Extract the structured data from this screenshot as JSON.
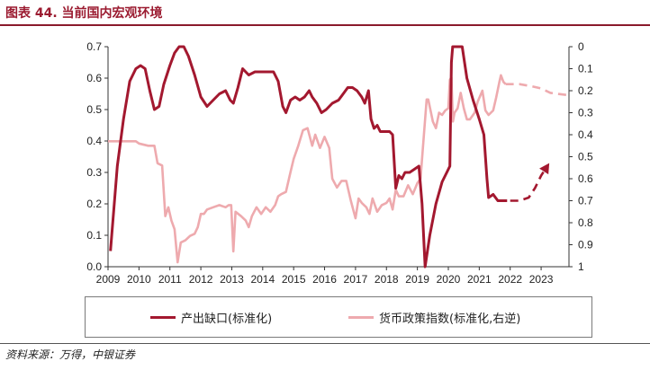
{
  "title": "图表 44. 当前国内宏观环境",
  "source": "资料来源：万得，中银证券",
  "legend": {
    "output_gap": "产出缺口(标准化)",
    "monetary_policy": "货币政策指数(标准化,右逆)"
  },
  "colors": {
    "output_gap": "#a3182f",
    "monetary_policy": "#eeaaae",
    "title": "#9b1b30"
  },
  "chart_data": {
    "type": "line",
    "xlim": [
      2009,
      2023.9
    ],
    "x_ticks": [
      "2009",
      "2010",
      "2011",
      "2012",
      "2013",
      "2014",
      "2015",
      "2016",
      "2017",
      "2018",
      "2019",
      "2020",
      "2021",
      "2022",
      "2023"
    ],
    "y_left": {
      "lim": [
        0,
        0.7
      ],
      "ticks": [
        "0.0",
        "0.1",
        "0.2",
        "0.3",
        "0.4",
        "0.5",
        "0.6",
        "0.7"
      ]
    },
    "y_right": {
      "lim": [
        0,
        1
      ],
      "inverted": true,
      "ticks": [
        "0",
        "0.1",
        "0.2",
        "0.3",
        "0.4",
        "0.5",
        "0.6",
        "0.7",
        "0.8",
        "0.9",
        "1"
      ]
    },
    "series": [
      {
        "name": "产出缺口(标准化)",
        "axis": "left",
        "values": [
          [
            2009.08,
            0.05
          ],
          [
            2009.3,
            0.32
          ],
          [
            2009.5,
            0.47
          ],
          [
            2009.7,
            0.59
          ],
          [
            2009.9,
            0.63
          ],
          [
            2010.05,
            0.64
          ],
          [
            2010.2,
            0.63
          ],
          [
            2010.35,
            0.56
          ],
          [
            2010.5,
            0.5
          ],
          [
            2010.65,
            0.51
          ],
          [
            2010.8,
            0.58
          ],
          [
            2011.0,
            0.64
          ],
          [
            2011.15,
            0.68
          ],
          [
            2011.3,
            0.7
          ],
          [
            2011.45,
            0.7
          ],
          [
            2011.6,
            0.67
          ],
          [
            2011.8,
            0.61
          ],
          [
            2012.0,
            0.54
          ],
          [
            2012.2,
            0.51
          ],
          [
            2012.4,
            0.53
          ],
          [
            2012.6,
            0.55
          ],
          [
            2012.8,
            0.56
          ],
          [
            2012.95,
            0.53
          ],
          [
            2013.05,
            0.52
          ],
          [
            2013.2,
            0.57
          ],
          [
            2013.35,
            0.63
          ],
          [
            2013.55,
            0.61
          ],
          [
            2013.75,
            0.62
          ],
          [
            2013.95,
            0.62
          ],
          [
            2014.15,
            0.62
          ],
          [
            2014.35,
            0.62
          ],
          [
            2014.5,
            0.59
          ],
          [
            2014.65,
            0.51
          ],
          [
            2014.75,
            0.49
          ],
          [
            2014.9,
            0.53
          ],
          [
            2015.05,
            0.54
          ],
          [
            2015.2,
            0.53
          ],
          [
            2015.35,
            0.54
          ],
          [
            2015.5,
            0.56
          ],
          [
            2015.6,
            0.54
          ],
          [
            2015.75,
            0.52
          ],
          [
            2015.9,
            0.49
          ],
          [
            2016.05,
            0.5
          ],
          [
            2016.25,
            0.52
          ],
          [
            2016.45,
            0.53
          ],
          [
            2016.6,
            0.55
          ],
          [
            2016.75,
            0.57
          ],
          [
            2016.9,
            0.57
          ],
          [
            2017.05,
            0.56
          ],
          [
            2017.2,
            0.54
          ],
          [
            2017.3,
            0.52
          ],
          [
            2017.42,
            0.56
          ],
          [
            2017.5,
            0.47
          ],
          [
            2017.6,
            0.44
          ],
          [
            2017.7,
            0.45
          ],
          [
            2017.8,
            0.43
          ],
          [
            2017.95,
            0.43
          ],
          [
            2018.1,
            0.43
          ],
          [
            2018.2,
            0.42
          ],
          [
            2018.3,
            0.25
          ],
          [
            2018.4,
            0.29
          ],
          [
            2018.5,
            0.28
          ],
          [
            2018.6,
            0.3
          ],
          [
            2018.75,
            0.3
          ],
          [
            2018.9,
            0.31
          ],
          [
            2019.05,
            0.32
          ],
          [
            2019.15,
            0.2
          ],
          [
            2019.25,
            0.0
          ],
          [
            2019.4,
            0.1
          ],
          [
            2019.6,
            0.2
          ],
          [
            2019.8,
            0.27
          ],
          [
            2019.95,
            0.3
          ],
          [
            2020.05,
            0.32
          ],
          [
            2020.1,
            0.65
          ],
          [
            2020.14,
            0.7
          ],
          [
            2020.45,
            0.7
          ],
          [
            2020.6,
            0.6
          ],
          [
            2020.8,
            0.53
          ],
          [
            2021.0,
            0.47
          ],
          [
            2021.15,
            0.42
          ],
          [
            2021.25,
            0.28
          ],
          [
            2021.3,
            0.22
          ],
          [
            2021.45,
            0.23
          ],
          [
            2021.6,
            0.21
          ],
          [
            2021.75,
            0.21
          ],
          [
            2021.9,
            0.21
          ]
        ],
        "forecast": [
          [
            2022.0,
            0.21
          ],
          [
            2022.3,
            0.21
          ],
          [
            2022.6,
            0.22
          ],
          [
            2022.8,
            0.25
          ],
          [
            2023.0,
            0.29
          ],
          [
            2023.2,
            0.32
          ]
        ]
      },
      {
        "name": "货币政策指数(标准化,右逆)",
        "axis": "right",
        "values": [
          [
            2009.0,
            0.43
          ],
          [
            2009.3,
            0.43
          ],
          [
            2009.6,
            0.43
          ],
          [
            2009.9,
            0.43
          ],
          [
            2010.0,
            0.44
          ],
          [
            2010.3,
            0.45
          ],
          [
            2010.5,
            0.45
          ],
          [
            2010.6,
            0.53
          ],
          [
            2010.75,
            0.54
          ],
          [
            2010.85,
            0.77
          ],
          [
            2010.95,
            0.73
          ],
          [
            2011.05,
            0.79
          ],
          [
            2011.15,
            0.83
          ],
          [
            2011.25,
            0.98
          ],
          [
            2011.35,
            0.89
          ],
          [
            2011.5,
            0.88
          ],
          [
            2011.65,
            0.86
          ],
          [
            2011.8,
            0.85
          ],
          [
            2011.9,
            0.82
          ],
          [
            2012.0,
            0.76
          ],
          [
            2012.1,
            0.76
          ],
          [
            2012.2,
            0.74
          ],
          [
            2012.4,
            0.73
          ],
          [
            2012.6,
            0.72
          ],
          [
            2012.8,
            0.73
          ],
          [
            2012.9,
            0.72
          ],
          [
            2012.98,
            0.72
          ],
          [
            2013.05,
            0.93
          ],
          [
            2013.12,
            0.75
          ],
          [
            2013.3,
            0.77
          ],
          [
            2013.45,
            0.79
          ],
          [
            2013.55,
            0.82
          ],
          [
            2013.65,
            0.77
          ],
          [
            2013.8,
            0.73
          ],
          [
            2013.95,
            0.76
          ],
          [
            2014.1,
            0.73
          ],
          [
            2014.25,
            0.75
          ],
          [
            2014.4,
            0.72
          ],
          [
            2014.5,
            0.68
          ],
          [
            2014.6,
            0.67
          ],
          [
            2014.75,
            0.66
          ],
          [
            2014.9,
            0.57
          ],
          [
            2015.0,
            0.51
          ],
          [
            2015.15,
            0.45
          ],
          [
            2015.3,
            0.38
          ],
          [
            2015.45,
            0.37
          ],
          [
            2015.6,
            0.45
          ],
          [
            2015.7,
            0.4
          ],
          [
            2015.85,
            0.46
          ],
          [
            2016.0,
            0.41
          ],
          [
            2016.15,
            0.46
          ],
          [
            2016.25,
            0.6
          ],
          [
            2016.4,
            0.64
          ],
          [
            2016.55,
            0.61
          ],
          [
            2016.7,
            0.61
          ],
          [
            2016.85,
            0.7
          ],
          [
            2017.0,
            0.78
          ],
          [
            2017.1,
            0.69
          ],
          [
            2017.2,
            0.71
          ],
          [
            2017.35,
            0.73
          ],
          [
            2017.45,
            0.76
          ],
          [
            2017.55,
            0.69
          ],
          [
            2017.7,
            0.75
          ],
          [
            2017.85,
            0.72
          ],
          [
            2018.0,
            0.71
          ],
          [
            2018.1,
            0.69
          ],
          [
            2018.2,
            0.74
          ],
          [
            2018.3,
            0.65
          ],
          [
            2018.4,
            0.68
          ],
          [
            2018.55,
            0.68
          ],
          [
            2018.7,
            0.63
          ],
          [
            2018.85,
            0.67
          ],
          [
            2019.0,
            0.62
          ],
          [
            2019.1,
            0.6
          ],
          [
            2019.2,
            0.42
          ],
          [
            2019.3,
            0.24
          ],
          [
            2019.35,
            0.24
          ],
          [
            2019.5,
            0.34
          ],
          [
            2019.6,
            0.37
          ],
          [
            2019.7,
            0.3
          ],
          [
            2019.8,
            0.31
          ],
          [
            2019.9,
            0.29
          ],
          [
            2020.0,
            0.28
          ],
          [
            2020.05,
            0.15
          ],
          [
            2020.1,
            0.14
          ],
          [
            2020.15,
            0.34
          ],
          [
            2020.2,
            0.3
          ],
          [
            2020.3,
            0.28
          ],
          [
            2020.4,
            0.21
          ],
          [
            2020.5,
            0.28
          ],
          [
            2020.6,
            0.33
          ],
          [
            2020.7,
            0.33
          ],
          [
            2020.85,
            0.3
          ],
          [
            2020.95,
            0.25
          ],
          [
            2021.1,
            0.2
          ],
          [
            2021.2,
            0.29
          ],
          [
            2021.3,
            0.31
          ],
          [
            2021.45,
            0.29
          ],
          [
            2021.55,
            0.23
          ],
          [
            2021.65,
            0.16
          ],
          [
            2021.7,
            0.13
          ],
          [
            2021.78,
            0.16
          ],
          [
            2021.85,
            0.17
          ]
        ],
        "forecast": [
          [
            2021.85,
            0.17
          ],
          [
            2022.3,
            0.17
          ],
          [
            2022.7,
            0.18
          ],
          [
            2023.0,
            0.19
          ],
          [
            2023.3,
            0.21
          ],
          [
            2023.85,
            0.22
          ]
        ]
      }
    ]
  }
}
